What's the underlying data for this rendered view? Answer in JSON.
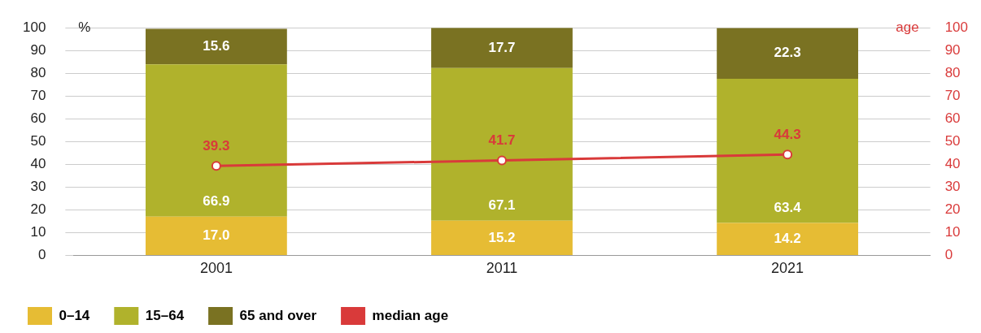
{
  "chart_data": {
    "type": "bar",
    "stacked": true,
    "categories": [
      "2001",
      "2011",
      "2021"
    ],
    "series": [
      {
        "name": "0–14",
        "color": "#e6bc34",
        "values": [
          17.0,
          15.2,
          14.2
        ],
        "value_labels": [
          "17.0",
          "15.2",
          "14.2"
        ]
      },
      {
        "name": "15–64",
        "color": "#b0b22c",
        "values": [
          66.9,
          67.1,
          63.4
        ],
        "value_labels": [
          "66.9",
          "67.1",
          "63.4"
        ]
      },
      {
        "name": "65 and over",
        "color": "#7a7222",
        "values": [
          15.6,
          17.7,
          22.3
        ],
        "value_labels": [
          "15.6",
          "17.7",
          "22.3"
        ]
      },
      {
        "name": "median age",
        "type": "line",
        "axis": "y2",
        "color": "#d93a3a",
        "values": [
          39.3,
          41.7,
          44.3
        ],
        "value_labels": [
          "39.3",
          "41.7",
          "44.3"
        ]
      }
    ],
    "ylabel": "%",
    "y2label": "age",
    "ylim": [
      0,
      100
    ],
    "yticks": [
      0,
      10,
      20,
      30,
      40,
      50,
      60,
      70,
      80,
      90,
      100
    ],
    "y2lim": [
      0,
      100
    ],
    "y2ticks": [
      0,
      10,
      20,
      30,
      40,
      50,
      60,
      70,
      80,
      90,
      100
    ],
    "grid": "y",
    "legend": "bottom",
    "marker": "circle",
    "line_style": "solid"
  }
}
